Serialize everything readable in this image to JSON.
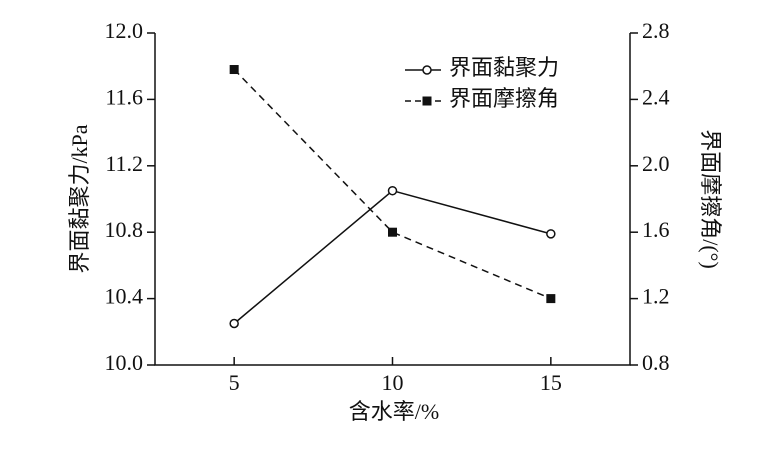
{
  "chart_data": {
    "type": "line",
    "x_label": "含水率/%",
    "y_label": "界面黏聚力/kPa",
    "y2_label": "界面摩擦角/(°)",
    "x": [
      5,
      10,
      15
    ],
    "xlim": [
      2.5,
      17.5
    ],
    "xticks": [
      5,
      10,
      15
    ],
    "ylim": [
      10.0,
      12.0
    ],
    "yticks": [
      {
        "value": 10.0,
        "label": "10.0"
      },
      10.4,
      10.8,
      11.2,
      11.6,
      {
        "value": 12.0,
        "label": "12.0"
      }
    ],
    "y2lim": [
      0.8,
      2.8
    ],
    "y2ticks": [
      0.8,
      1.2,
      1.6,
      {
        "value": 2.0,
        "label": "2.0"
      },
      2.4,
      2.8
    ],
    "legend": "upper right",
    "series": [
      {
        "name": "界面黏聚力",
        "color": "#111111",
        "marker": "open-circle",
        "dash": "solid",
        "values": [
          10.25,
          11.05,
          10.79
        ]
      },
      {
        "name": "界面摩擦角",
        "color": "#111111",
        "marker": "filled-square",
        "dash": "dashed",
        "axis": "y2",
        "values": [
          2.58,
          1.6,
          1.2
        ]
      }
    ]
  }
}
